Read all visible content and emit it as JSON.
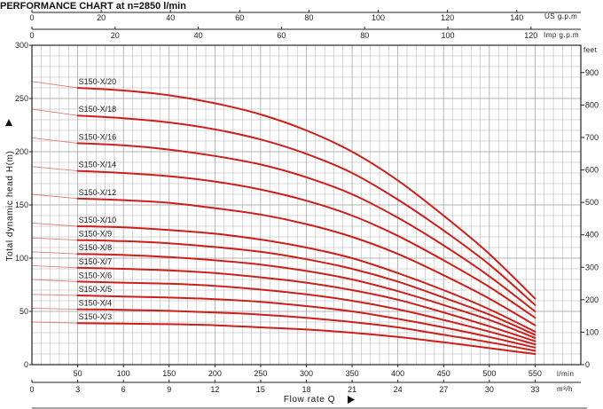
{
  "chart_data": {
    "type": "line",
    "title": "PERFORMANCE CHART at n=2850 l/min",
    "ylabel": "Total dynamic head  H(m)",
    "xlabel": "Flow rate  Q",
    "ylim": [
      0,
      300
    ],
    "y_ticks": [
      0,
      50,
      100,
      150,
      200,
      250,
      300
    ],
    "y_right": {
      "unit": "feet",
      "ticks": [
        0,
        100,
        200,
        300,
        400,
        500,
        600,
        700,
        800,
        900
      ]
    },
    "x_main": {
      "unit": "l/min",
      "ticks": [
        50,
        100,
        150,
        200,
        250,
        300,
        350,
        400,
        450,
        500,
        550
      ]
    },
    "x_m3h": {
      "unit": "m³/h",
      "ticks": [
        0,
        3,
        6,
        9,
        12,
        15,
        18,
        21,
        24,
        27,
        30,
        33
      ]
    },
    "x_usgpm": {
      "unit": "US g.p.m",
      "ticks": [
        0,
        20,
        40,
        60,
        80,
        100,
        120,
        140
      ]
    },
    "x_impgpm": {
      "unit": "Imp g.p.m",
      "ticks": [
        0,
        20,
        40,
        60,
        80,
        100,
        120
      ]
    },
    "grid": true,
    "xlim": [
      0,
      600
    ],
    "curve_x": [
      50,
      100,
      150,
      200,
      250,
      300,
      350,
      400,
      450,
      500,
      550
    ],
    "shutoff_x": 0,
    "series": [
      {
        "name": "S150-X/3",
        "shutoff": 40,
        "values": [
          39,
          38.5,
          38,
          37,
          35,
          33,
          30,
          26,
          21,
          15.5,
          10
        ]
      },
      {
        "name": "S150-X/4",
        "shutoff": 53,
        "values": [
          52,
          51.5,
          50.5,
          49,
          47,
          44,
          40,
          35,
          28,
          21,
          13
        ]
      },
      {
        "name": "S150-X/5",
        "shutoff": 66,
        "values": [
          65,
          64,
          63,
          61.5,
          59,
          55,
          50,
          43,
          35,
          26,
          16
        ]
      },
      {
        "name": "S150-X/6",
        "shutoff": 80,
        "values": [
          78,
          77,
          76,
          74,
          70.5,
          66,
          60,
          52,
          42,
          31,
          19
        ]
      },
      {
        "name": "S150-X/7",
        "shutoff": 93,
        "values": [
          91,
          90,
          88.5,
          86,
          82,
          77,
          70,
          61,
          49,
          36,
          22
        ]
      },
      {
        "name": "S150-X/8",
        "shutoff": 106,
        "values": [
          104,
          103,
          101,
          98,
          94,
          88,
          80,
          69,
          56,
          42,
          25
        ]
      },
      {
        "name": "S150-X/9",
        "shutoff": 119,
        "values": [
          117,
          116,
          114,
          110.5,
          106,
          99,
          90,
          78,
          63,
          47,
          28
        ]
      },
      {
        "name": "S150-X/10",
        "shutoff": 133,
        "values": [
          130,
          129,
          126.5,
          123,
          117.5,
          110,
          100,
          86,
          70,
          52,
          31
        ]
      },
      {
        "name": "S150-X/12",
        "shutoff": 160,
        "values": [
          156,
          154.5,
          152,
          147,
          141,
          132,
          120,
          104,
          84,
          62,
          37
        ]
      },
      {
        "name": "S150-X/14",
        "shutoff": 186,
        "values": [
          182,
          180,
          177,
          172,
          164.5,
          154,
          140,
          121,
          98,
          73,
          44
        ]
      },
      {
        "name": "S150-X/16",
        "shutoff": 213,
        "values": [
          208,
          206,
          202,
          196,
          188,
          176,
          160,
          138,
          112,
          83,
          50
        ]
      },
      {
        "name": "S150-X/18",
        "shutoff": 240,
        "values": [
          234,
          231.5,
          227.5,
          221,
          211.5,
          198,
          180,
          155,
          126,
          94,
          56
        ]
      },
      {
        "name": "S150-X/20",
        "shutoff": 266,
        "values": [
          260,
          257.5,
          253,
          245.5,
          235,
          220,
          200,
          173,
          140,
          104,
          62
        ]
      }
    ],
    "colors": {
      "curve": "#cc1f1a",
      "extension": "#e07f7b",
      "grid": "#9a9a9a",
      "frame": "#222222"
    }
  }
}
